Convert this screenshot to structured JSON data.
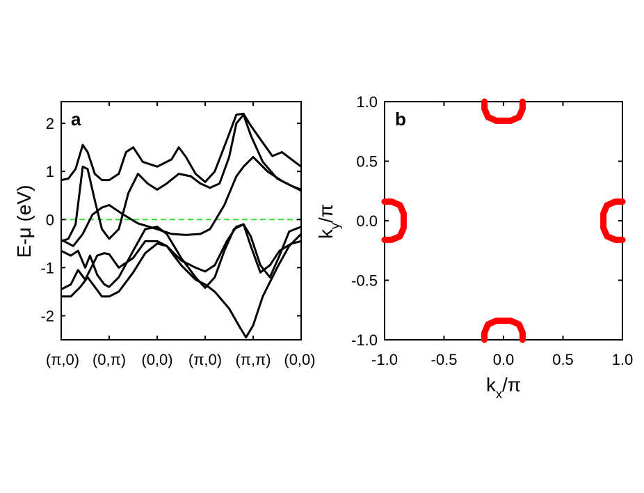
{
  "chart_data": [
    {
      "panel": "a",
      "type": "line",
      "ylabel": "E-μ (eV)",
      "ylim": [
        -2.5,
        2.45
      ],
      "yticks": [
        2,
        1,
        0,
        -1,
        -2
      ],
      "ytick_labels": [
        "2",
        "1",
        "0",
        "-1",
        "-2"
      ],
      "xlim": [
        0,
        5
      ],
      "xtick_labels": [
        "(π,0)",
        "(0,π)",
        "(0,0)",
        "(π,0)",
        "(π,π)",
        "(0,0)"
      ],
      "reference_line": {
        "y": 0,
        "color": "#33dd33",
        "style": "dashed"
      },
      "line_color": "#000000",
      "series": [
        {
          "points": [
            [
              0,
              0.82
            ],
            [
              0.15,
              0.85
            ],
            [
              0.3,
              1.05
            ],
            [
              0.45,
              1.55
            ],
            [
              0.55,
              1.4
            ],
            [
              0.7,
              0.95
            ],
            [
              0.85,
              0.82
            ],
            [
              1,
              0.82
            ],
            [
              1.2,
              0.95
            ],
            [
              1.35,
              1.4
            ],
            [
              1.5,
              1.5
            ],
            [
              1.7,
              1.2
            ],
            [
              2,
              1.1
            ],
            [
              2.3,
              1.25
            ],
            [
              2.45,
              1.5
            ],
            [
              2.6,
              1.3
            ],
            [
              2.8,
              0.95
            ],
            [
              3,
              0.78
            ],
            [
              3.2,
              1.0
            ],
            [
              3.45,
              1.65
            ],
            [
              3.65,
              2.18
            ],
            [
              3.8,
              2.2
            ],
            [
              3.95,
              1.95
            ],
            [
              4.2,
              1.6
            ],
            [
              4.4,
              1.32
            ],
            [
              4.6,
              1.4
            ],
            [
              4.8,
              1.25
            ],
            [
              5,
              1.1
            ]
          ]
        },
        {
          "points": [
            [
              0,
              -0.45
            ],
            [
              0.15,
              -0.4
            ],
            [
              0.3,
              -0.1
            ],
            [
              0.45,
              1.1
            ],
            [
              0.55,
              1.05
            ],
            [
              0.7,
              0.4
            ],
            [
              0.85,
              -0.2
            ],
            [
              1,
              -0.4
            ],
            [
              1.2,
              -0.2
            ],
            [
              1.4,
              0.55
            ],
            [
              1.6,
              0.95
            ],
            [
              1.8,
              0.75
            ],
            [
              2,
              0.62
            ],
            [
              2.2,
              0.75
            ],
            [
              2.45,
              0.95
            ],
            [
              2.7,
              0.9
            ],
            [
              2.9,
              0.75
            ],
            [
              3.1,
              0.66
            ],
            [
              3.3,
              0.75
            ],
            [
              3.5,
              1.3
            ],
            [
              3.65,
              2.0
            ],
            [
              3.8,
              2.18
            ],
            [
              3.95,
              1.75
            ],
            [
              4.2,
              1.2
            ],
            [
              4.5,
              0.85
            ],
            [
              4.8,
              0.7
            ],
            [
              5,
              0.62
            ]
          ]
        },
        {
          "points": [
            [
              0,
              -0.42
            ],
            [
              0.25,
              -0.55
            ],
            [
              0.45,
              -0.3
            ],
            [
              0.65,
              0.1
            ],
            [
              0.85,
              0.25
            ],
            [
              1,
              0.3
            ],
            [
              1.3,
              0.1
            ],
            [
              1.6,
              -0.08
            ],
            [
              2,
              -0.2
            ],
            [
              2.3,
              -0.3
            ],
            [
              2.6,
              -0.32
            ],
            [
              2.9,
              -0.3
            ],
            [
              3.1,
              -0.2
            ],
            [
              3.4,
              0.3
            ],
            [
              3.65,
              0.9
            ],
            [
              3.8,
              1.1
            ],
            [
              4.0,
              1.3
            ],
            [
              4.3,
              1.0
            ],
            [
              4.6,
              0.8
            ],
            [
              5,
              0.6
            ]
          ]
        },
        {
          "points": [
            [
              0,
              -0.65
            ],
            [
              0.2,
              -0.75
            ],
            [
              0.35,
              -0.65
            ],
            [
              0.5,
              -1.0
            ],
            [
              0.6,
              -0.75
            ],
            [
              0.75,
              -1.15
            ],
            [
              0.9,
              -1.35
            ],
            [
              1,
              -1.4
            ],
            [
              1.2,
              -1.2
            ],
            [
              1.5,
              -0.65
            ],
            [
              1.75,
              -0.2
            ],
            [
              2,
              -0.15
            ],
            [
              2.2,
              -0.3
            ],
            [
              2.5,
              -0.8
            ],
            [
              2.8,
              -1.2
            ],
            [
              3,
              -1.42
            ],
            [
              3.2,
              -1.2
            ],
            [
              3.4,
              -0.65
            ],
            [
              3.6,
              -0.2
            ],
            [
              3.8,
              -0.1
            ],
            [
              3.95,
              -0.35
            ],
            [
              4.15,
              -0.95
            ],
            [
              4.35,
              -1.2
            ],
            [
              4.55,
              -0.75
            ],
            [
              4.75,
              -0.25
            ],
            [
              5,
              -0.15
            ]
          ]
        },
        {
          "points": [
            [
              0,
              -1.45
            ],
            [
              0.2,
              -1.35
            ],
            [
              0.35,
              -1.05
            ],
            [
              0.5,
              -1.25
            ],
            [
              0.6,
              -1.05
            ],
            [
              0.75,
              -0.75
            ],
            [
              0.9,
              -0.7
            ],
            [
              1,
              -0.72
            ],
            [
              1.2,
              -1.0
            ],
            [
              1.5,
              -0.8
            ],
            [
              1.75,
              -0.45
            ],
            [
              2,
              -0.45
            ],
            [
              2.2,
              -0.55
            ],
            [
              2.5,
              -0.85
            ],
            [
              2.8,
              -1.0
            ],
            [
              3,
              -1.08
            ],
            [
              3.2,
              -0.95
            ],
            [
              3.45,
              -0.45
            ],
            [
              3.65,
              -0.15
            ],
            [
              3.8,
              -0.1
            ],
            [
              3.95,
              -0.55
            ],
            [
              4.15,
              -1.1
            ],
            [
              4.35,
              -0.95
            ],
            [
              4.55,
              -0.65
            ],
            [
              4.8,
              -0.5
            ],
            [
              5,
              -0.45
            ]
          ]
        },
        {
          "points": [
            [
              0,
              -1.6
            ],
            [
              0.2,
              -1.6
            ],
            [
              0.4,
              -1.4
            ],
            [
              0.55,
              -1.2
            ],
            [
              0.7,
              -1.4
            ],
            [
              0.85,
              -1.6
            ],
            [
              1,
              -1.6
            ],
            [
              1.2,
              -1.5
            ],
            [
              1.5,
              -1.1
            ],
            [
              1.75,
              -0.7
            ],
            [
              2,
              -0.5
            ],
            [
              2.2,
              -0.55
            ],
            [
              2.5,
              -0.95
            ],
            [
              2.8,
              -1.25
            ],
            [
              3,
              -1.35
            ],
            [
              3.2,
              -1.5
            ],
            [
              3.5,
              -1.85
            ],
            [
              3.7,
              -2.2
            ],
            [
              3.85,
              -2.45
            ],
            [
              4.0,
              -2.2
            ],
            [
              4.2,
              -1.6
            ],
            [
              4.5,
              -1.0
            ],
            [
              4.75,
              -0.55
            ],
            [
              5,
              -0.3
            ]
          ]
        }
      ]
    },
    {
      "panel": "b",
      "type": "scatter",
      "xlabel": "k",
      "xlabel_sub": "x",
      "xlabel_suffix": "/π",
      "ylabel": "k",
      "ylabel_sub": "y",
      "ylabel_suffix": "/π",
      "xlim": [
        -1.0,
        1.0
      ],
      "ylim": [
        -1.0,
        1.0
      ],
      "xticks": [
        -1.0,
        -0.5,
        0.0,
        0.5,
        1.0
      ],
      "xtick_labels": [
        "-1.0",
        "-0.5",
        "0.0",
        "0.5",
        "1.0"
      ],
      "yticks": [
        1.0,
        0.5,
        0.0,
        -0.5,
        -1.0
      ],
      "ytick_labels": [
        "1.0",
        "0.5",
        "0.0",
        "-0.5",
        "-1.0"
      ],
      "marker_color": "#ff0000",
      "pockets": [
        {
          "center": [
            0.0,
            1.0
          ],
          "opening": "top"
        },
        {
          "center": [
            0.0,
            -1.0
          ],
          "opening": "bottom"
        },
        {
          "center": [
            -1.0,
            0.0
          ],
          "opening": "left"
        },
        {
          "center": [
            1.0,
            0.0
          ],
          "opening": "right"
        }
      ],
      "pocket_size": [
        0.16,
        0.16
      ],
      "pocket_corner": 0.1
    }
  ]
}
